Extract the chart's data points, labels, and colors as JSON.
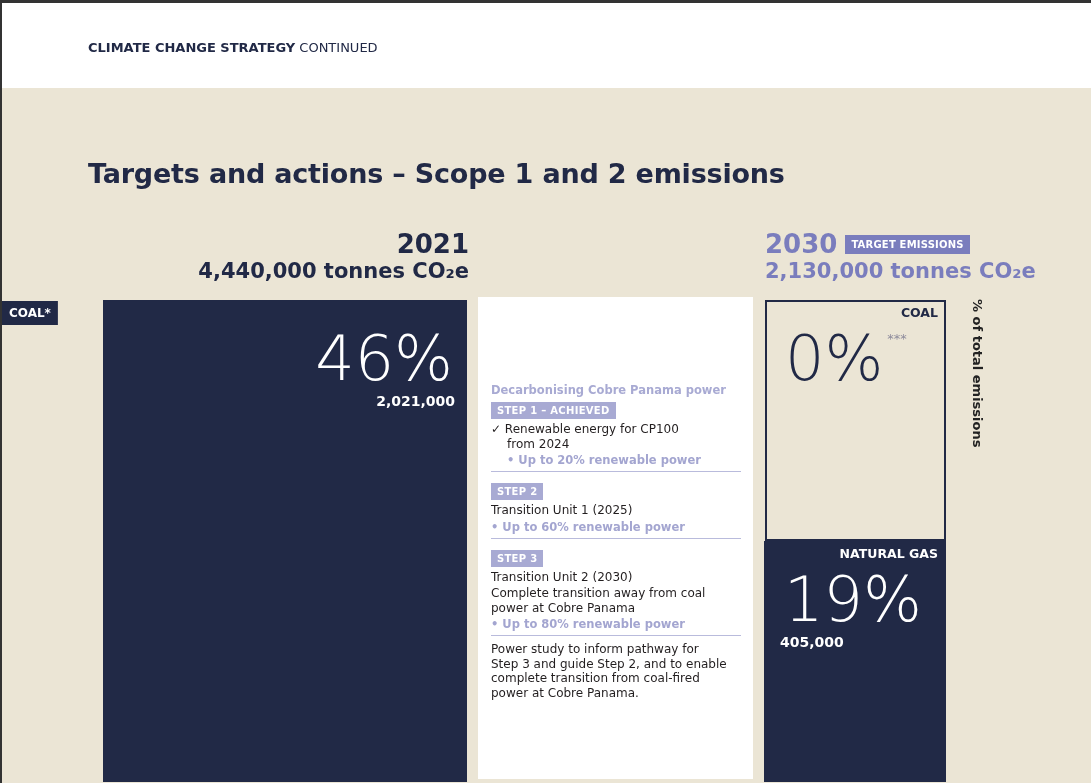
{
  "chart_data": [
    {
      "type": "other",
      "title": "Targets and actions – Scope 1 and 2 emissions",
      "annotations": [
        "CLIMATE CHANGE STRATEGY CONTINUED"
      ]
    },
    {
      "type": "other",
      "title": "2021",
      "subtitle": "4,440,000 tonnes CO₂e",
      "categories": [
        "COAL*"
      ],
      "values": [
        46
      ],
      "value_labels": [
        "46%"
      ],
      "colors": [
        "#212946"
      ],
      "annotations": [
        {
          "text": "2,021,000",
          "x": "COAL*"
        }
      ]
    },
    {
      "type": "other",
      "title": "Decarbonising Cobre Panama power",
      "annotations": [
        "STEP 1 – ACHIEVED",
        "✓ Renewable energy for CP100 from 2024",
        "• Up to 20% renewable power",
        "STEP 2",
        "Transition Unit 1 (2025)",
        "• Up to 60% renewable power",
        "STEP 3",
        "Transition Unit 2 (2030)",
        "Complete transition away from coal power at Cobre Panama",
        "• Up to 80% renewable power",
        "Power study to inform pathway for Step 3 and guide Step 2, and to enable complete transition from coal-fired power at Cobre Panama."
      ]
    },
    {
      "type": "other",
      "title": "2030",
      "subtitle": "2,130,000 tonnes CO₂e",
      "ylabel": "% of total emissions",
      "categories": [
        "COAL",
        "NATURAL GAS"
      ],
      "values": [
        0,
        19
      ],
      "value_labels": [
        "0%",
        "19%"
      ],
      "colors": [
        "#212946",
        "#212946"
      ],
      "annotations": [
        "TARGET EMISSIONS",
        {
          "text": "***",
          "x": "COAL"
        },
        {
          "text": "405,000",
          "x": "NATURAL GAS"
        }
      ]
    }
  ]
}
